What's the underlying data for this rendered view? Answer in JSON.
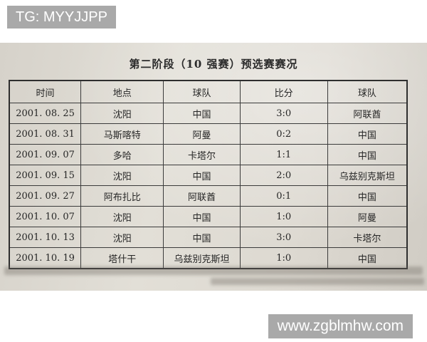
{
  "watermarks": {
    "top": "TG: MYYJJPP",
    "bottom": "www.zgblmhw.com"
  },
  "page": {
    "title": "第二阶段（10 强赛）预选赛赛况"
  },
  "table": {
    "headers": [
      "时间",
      "地点",
      "球队",
      "比分",
      "球队"
    ],
    "rows": [
      [
        "2001. 08. 25",
        "沈阳",
        "中国",
        "3:0",
        "阿联酋"
      ],
      [
        "2001. 08. 31",
        "马斯喀特",
        "阿曼",
        "0:2",
        "中国"
      ],
      [
        "2001. 09. 07",
        "多哈",
        "卡塔尔",
        "1:1",
        "中国"
      ],
      [
        "2001. 09. 15",
        "沈阳",
        "中国",
        "2:0",
        "乌兹别克斯坦"
      ],
      [
        "2001. 09. 27",
        "阿布扎比",
        "阿联酋",
        "0:1",
        "中国"
      ],
      [
        "2001. 10. 07",
        "沈阳",
        "中国",
        "1:0",
        "阿曼"
      ],
      [
        "2001. 10. 13",
        "沈阳",
        "中国",
        "3:0",
        "卡塔尔"
      ],
      [
        "2001. 10. 19",
        "塔什干",
        "乌兹别克斯坦",
        "1:0",
        "中国"
      ]
    ]
  },
  "colors": {
    "badge_bg": "#a9a9a9",
    "badge_text": "#ffffff",
    "photo_bg": "#dcd8d0",
    "table_line": "#3b3b3b",
    "ink": "#262626"
  }
}
